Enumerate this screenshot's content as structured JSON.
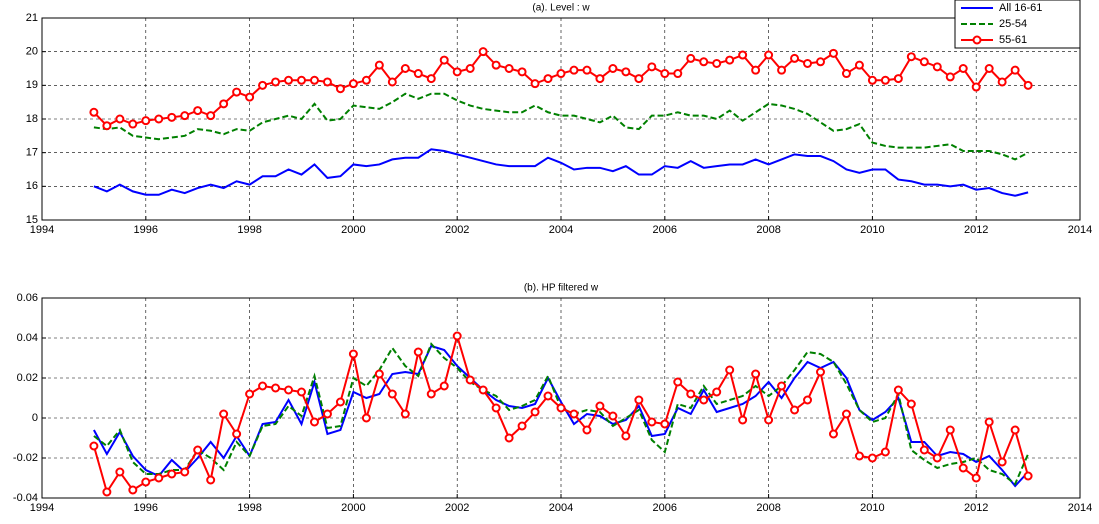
{
  "chart_data": [
    {
      "type": "line",
      "title": "(a). Level : w",
      "x": [
        1995,
        1995.25,
        1995.5,
        1995.75,
        1996,
        1996.25,
        1996.5,
        1996.75,
        1997,
        1997.25,
        1997.5,
        1997.75,
        1998,
        1998.25,
        1998.5,
        1998.75,
        1999,
        1999.25,
        1999.5,
        1999.75,
        2000,
        2000.25,
        2000.5,
        2000.75,
        2001,
        2001.25,
        2001.5,
        2001.75,
        2002,
        2002.25,
        2002.5,
        2002.75,
        2003,
        2003.25,
        2003.5,
        2003.75,
        2004,
        2004.25,
        2004.5,
        2004.75,
        2005,
        2005.25,
        2005.5,
        2005.75,
        2006,
        2006.25,
        2006.5,
        2006.75,
        2007,
        2007.25,
        2007.5,
        2007.75,
        2008,
        2008.25,
        2008.5,
        2008.75,
        2009,
        2009.25,
        2009.5,
        2009.75,
        2010,
        2010.25,
        2010.5,
        2010.75,
        2011,
        2011.25,
        2011.5,
        2011.75,
        2012,
        2012.25,
        2012.5,
        2012.75,
        2013
      ],
      "xlim": [
        1994,
        2014
      ],
      "xticks": [
        1994,
        1996,
        1998,
        2000,
        2002,
        2004,
        2006,
        2008,
        2010,
        2012,
        2014
      ],
      "ylim": [
        15,
        21
      ],
      "yticks": [
        15,
        16,
        17,
        18,
        19,
        20,
        21
      ],
      "grid": true,
      "legend": "upper right",
      "series": [
        {
          "name": "All 16-61",
          "color": "#0000ff",
          "linestyle": "solid",
          "values": [
            16.0,
            15.85,
            16.05,
            15.85,
            15.75,
            15.75,
            15.9,
            15.8,
            15.95,
            16.05,
            15.95,
            16.15,
            16.05,
            16.3,
            16.3,
            16.5,
            16.35,
            16.65,
            16.25,
            16.3,
            16.65,
            16.6,
            16.65,
            16.8,
            16.85,
            16.85,
            17.1,
            17.05,
            16.95,
            16.85,
            16.75,
            16.65,
            16.6,
            16.6,
            16.6,
            16.85,
            16.7,
            16.5,
            16.55,
            16.55,
            16.45,
            16.6,
            16.35,
            16.35,
            16.6,
            16.55,
            16.75,
            16.55,
            16.6,
            16.65,
            16.65,
            16.8,
            16.65,
            16.8,
            16.95,
            16.9,
            16.9,
            16.75,
            16.5,
            16.4,
            16.5,
            16.5,
            16.2,
            16.15,
            16.05,
            16.05,
            16.0,
            16.05,
            15.9,
            15.95,
            15.8,
            15.72,
            15.82
          ]
        },
        {
          "name": "25-54",
          "color": "#008000",
          "linestyle": "dashed",
          "values": [
            17.75,
            17.7,
            17.75,
            17.5,
            17.45,
            17.4,
            17.45,
            17.5,
            17.7,
            17.65,
            17.55,
            17.7,
            17.65,
            17.9,
            18.0,
            18.1,
            18.0,
            18.45,
            17.95,
            18.0,
            18.4,
            18.35,
            18.3,
            18.5,
            18.75,
            18.6,
            18.75,
            18.75,
            18.55,
            18.4,
            18.3,
            18.25,
            18.2,
            18.2,
            18.4,
            18.2,
            18.1,
            18.1,
            18.0,
            17.9,
            18.1,
            17.75,
            17.7,
            18.1,
            18.1,
            18.2,
            18.1,
            18.1,
            18.0,
            18.25,
            17.95,
            18.2,
            18.45,
            18.4,
            18.3,
            18.15,
            17.9,
            17.65,
            17.7,
            17.85,
            17.3,
            17.2,
            17.15,
            17.15,
            17.15,
            17.2,
            17.25,
            17.05,
            17.05,
            17.05,
            16.95,
            16.8,
            17.0
          ]
        },
        {
          "name": "55-61",
          "color": "#ff0000",
          "linestyle": "solid",
          "marker": "o",
          "values": [
            18.2,
            17.8,
            18.0,
            17.85,
            17.95,
            18.0,
            18.05,
            18.1,
            18.25,
            18.1,
            18.45,
            18.8,
            18.65,
            19.0,
            19.1,
            19.15,
            19.15,
            19.15,
            19.1,
            18.9,
            19.05,
            19.15,
            19.6,
            19.1,
            19.5,
            19.35,
            19.2,
            19.75,
            19.4,
            19.5,
            20.0,
            19.6,
            19.5,
            19.4,
            19.05,
            19.2,
            19.35,
            19.45,
            19.45,
            19.2,
            19.5,
            19.4,
            19.2,
            19.55,
            19.35,
            19.35,
            19.8,
            19.7,
            19.65,
            19.75,
            19.9,
            19.45,
            19.9,
            19.45,
            19.8,
            19.65,
            19.7,
            19.95,
            19.35,
            19.6,
            19.15,
            19.15,
            19.2,
            19.85,
            19.7,
            19.55,
            19.25,
            19.5,
            18.95,
            19.5,
            19.1,
            19.45,
            19.0
          ]
        }
      ]
    },
    {
      "type": "line",
      "title": "(b). HP filtered w",
      "x": [
        1995,
        1995.25,
        1995.5,
        1995.75,
        1996,
        1996.25,
        1996.5,
        1996.75,
        1997,
        1997.25,
        1997.5,
        1997.75,
        1998,
        1998.25,
        1998.5,
        1998.75,
        1999,
        1999.25,
        1999.5,
        1999.75,
        2000,
        2000.25,
        2000.5,
        2000.75,
        2001,
        2001.25,
        2001.5,
        2001.75,
        2002,
        2002.25,
        2002.5,
        2002.75,
        2003,
        2003.25,
        2003.5,
        2003.75,
        2004,
        2004.25,
        2004.5,
        2004.75,
        2005,
        2005.25,
        2005.5,
        2005.75,
        2006,
        2006.25,
        2006.5,
        2006.75,
        2007,
        2007.25,
        2007.5,
        2007.75,
        2008,
        2008.25,
        2008.5,
        2008.75,
        2009,
        2009.25,
        2009.5,
        2009.75,
        2010,
        2010.25,
        2010.5,
        2010.75,
        2011,
        2011.25,
        2011.5,
        2011.75,
        2012,
        2012.25,
        2012.5,
        2012.75,
        2013
      ],
      "xlim": [
        1994,
        2014
      ],
      "xticks": [
        1994,
        1996,
        1998,
        2000,
        2002,
        2004,
        2006,
        2008,
        2010,
        2012,
        2014
      ],
      "ylim": [
        -0.04,
        0.06
      ],
      "yticks": [
        -0.04,
        -0.02,
        0,
        0.02,
        0.04,
        0.06
      ],
      "grid": true,
      "series": [
        {
          "color": "#0000ff",
          "linestyle": "solid",
          "values": [
            -0.006,
            -0.018,
            -0.007,
            -0.019,
            -0.026,
            -0.029,
            -0.021,
            -0.027,
            -0.02,
            -0.012,
            -0.02,
            -0.009,
            -0.019,
            -0.003,
            -0.002,
            0.009,
            -0.003,
            0.018,
            -0.008,
            -0.006,
            0.013,
            0.01,
            0.012,
            0.022,
            0.023,
            0.022,
            0.036,
            0.034,
            0.026,
            0.02,
            0.014,
            0.009,
            0.006,
            0.005,
            0.007,
            0.02,
            0.008,
            -0.003,
            0.002,
            0.001,
            -0.003,
            -0.001,
            0.006,
            -0.009,
            -0.008,
            0.005,
            0.002,
            0.014,
            0.003,
            0.005,
            0.007,
            0.011,
            0.018,
            0.01,
            0.02,
            0.028,
            0.025,
            0.028,
            0.02,
            0.004,
            -0.001,
            0.003,
            0.01,
            -0.012,
            -0.012,
            -0.019,
            -0.017,
            -0.018,
            -0.022,
            -0.019,
            -0.026,
            -0.034,
            -0.027
          ]
        },
        {
          "color": "#008000",
          "linestyle": "dashed",
          "values": [
            -0.009,
            -0.014,
            -0.006,
            -0.022,
            -0.028,
            -0.028,
            -0.026,
            -0.026,
            -0.016,
            -0.02,
            -0.026,
            -0.012,
            -0.019,
            -0.004,
            -0.003,
            0.006,
            0.001,
            0.021,
            -0.005,
            -0.004,
            0.02,
            0.016,
            0.024,
            0.035,
            0.026,
            0.021,
            0.037,
            0.03,
            0.025,
            0.018,
            0.014,
            0.011,
            0.004,
            0.006,
            0.009,
            0.021,
            0.005,
            0.002,
            0.004,
            0.003,
            -0.004,
            0.0,
            0.004,
            -0.011,
            -0.017,
            0.007,
            0.005,
            0.016,
            0.007,
            0.009,
            0.011,
            0.016,
            0.011,
            0.016,
            0.024,
            0.033,
            0.032,
            0.028,
            0.017,
            0.004,
            -0.002,
            0.0,
            0.012,
            -0.016,
            -0.021,
            -0.025,
            -0.023,
            -0.022,
            -0.02,
            -0.026,
            -0.028,
            -0.033,
            -0.018
          ]
        },
        {
          "color": "#ff0000",
          "linestyle": "solid",
          "marker": "o",
          "values": [
            -0.014,
            -0.037,
            -0.027,
            -0.036,
            -0.032,
            -0.03,
            -0.028,
            -0.027,
            -0.016,
            -0.031,
            0.002,
            -0.008,
            0.012,
            0.016,
            0.015,
            0.014,
            0.013,
            -0.002,
            0.002,
            0.008,
            0.032,
            0.0,
            0.022,
            0.012,
            0.002,
            0.033,
            0.012,
            0.016,
            0.041,
            0.019,
            0.014,
            0.005,
            -0.01,
            -0.004,
            0.003,
            0.011,
            0.005,
            0.002,
            -0.006,
            0.006,
            0.001,
            -0.009,
            0.009,
            -0.002,
            -0.003,
            0.018,
            0.012,
            0.009,
            0.013,
            0.024,
            -0.001,
            0.022,
            -0.001,
            0.016,
            0.004,
            0.009,
            0.023,
            -0.008,
            0.002,
            -0.019,
            -0.02,
            -0.017,
            0.014,
            0.007,
            -0.016,
            -0.02,
            -0.006,
            -0.025,
            -0.03,
            -0.002,
            -0.022,
            -0.006,
            -0.029
          ]
        }
      ]
    }
  ]
}
